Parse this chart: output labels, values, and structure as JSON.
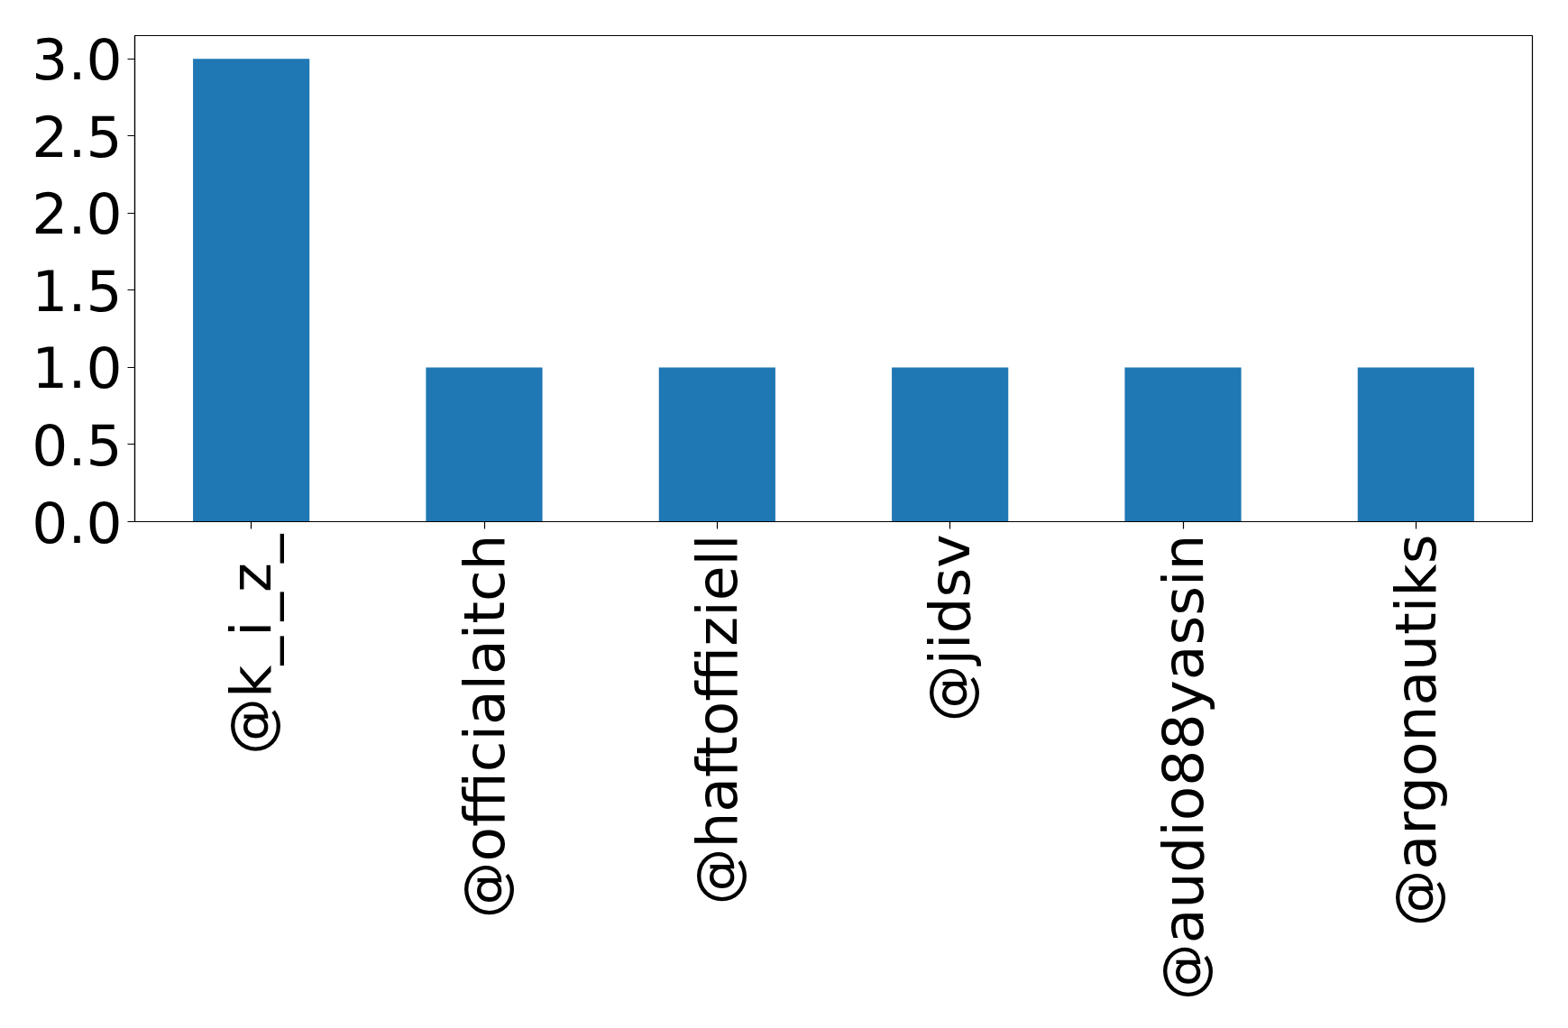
{
  "chart_data": {
    "type": "bar",
    "categories": [
      "@k_i_z_",
      "@officialaitch",
      "@haftoffiziell",
      "@jidsv",
      "@audio88yassin",
      "@argonautiks"
    ],
    "values": [
      3,
      1,
      1,
      1,
      1,
      1
    ],
    "color": "#1f77b4",
    "ylim": [
      0,
      3.15
    ],
    "yticks": [
      {
        "value": 0,
        "label": "0.0"
      },
      {
        "value": 0.5,
        "label": "0.5"
      },
      {
        "value": 1,
        "label": "1.0"
      },
      {
        "value": 1.5,
        "label": "1.5"
      },
      {
        "value": 2,
        "label": "2.0"
      },
      {
        "value": 2.5,
        "label": "2.5"
      },
      {
        "value": 3,
        "label": "3.0"
      }
    ],
    "grid": false
  }
}
